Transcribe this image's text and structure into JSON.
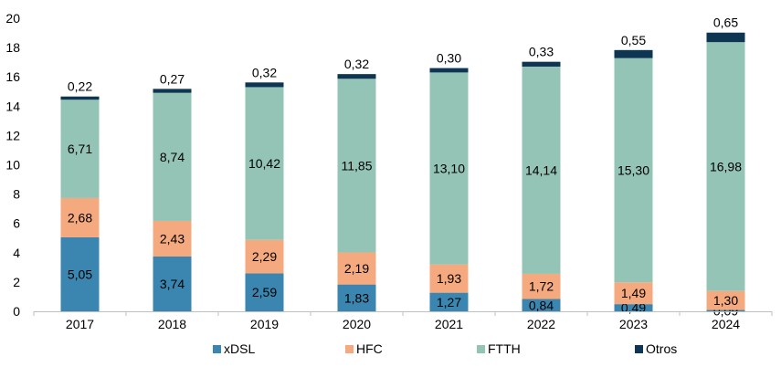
{
  "chart_data": {
    "type": "bar",
    "stacked": true,
    "title": "",
    "xlabel": "",
    "ylabel": "",
    "ylim": [
      0,
      20
    ],
    "yticks": [
      0,
      2,
      4,
      6,
      8,
      10,
      12,
      14,
      16,
      18,
      20
    ],
    "ytick_labels": [
      "0",
      "2",
      "4",
      "6",
      "8",
      "10",
      "12",
      "14",
      "16",
      "18",
      "20"
    ],
    "categories": [
      "2017",
      "2018",
      "2019",
      "2020",
      "2021",
      "2022",
      "2023",
      "2024"
    ],
    "series": [
      {
        "name": "xDSL",
        "color": "#3a86b0",
        "values": [
          5.05,
          3.74,
          2.59,
          1.83,
          1.27,
          0.84,
          0.49,
          0.09
        ],
        "labels": [
          "5,05",
          "3,74",
          "2,59",
          "1,83",
          "1,27",
          "0,84",
          "0,49",
          "0,09"
        ]
      },
      {
        "name": "HFC",
        "color": "#f5a97f",
        "values": [
          2.68,
          2.43,
          2.29,
          2.19,
          1.93,
          1.72,
          1.49,
          1.3
        ],
        "labels": [
          "2,68",
          "2,43",
          "2,29",
          "2,19",
          "1,93",
          "1,72",
          "1,49",
          "1,30"
        ]
      },
      {
        "name": "FTTH",
        "color": "#93c4b6",
        "values": [
          6.71,
          8.74,
          10.42,
          11.85,
          13.1,
          14.14,
          15.3,
          16.98
        ],
        "labels": [
          "6,71",
          "8,74",
          "10,42",
          "11,85",
          "13,10",
          "14,14",
          "15,30",
          "16,98"
        ]
      },
      {
        "name": "Otros",
        "color": "#0e3652",
        "values": [
          0.22,
          0.27,
          0.32,
          0.32,
          0.3,
          0.33,
          0.55,
          0.65
        ],
        "labels": [
          "0,22",
          "0,27",
          "0,32",
          "0,32",
          "0,30",
          "0,33",
          "0,55",
          "0,65"
        ]
      }
    ],
    "legend": {
      "position": "bottom"
    },
    "gridlines": false
  }
}
